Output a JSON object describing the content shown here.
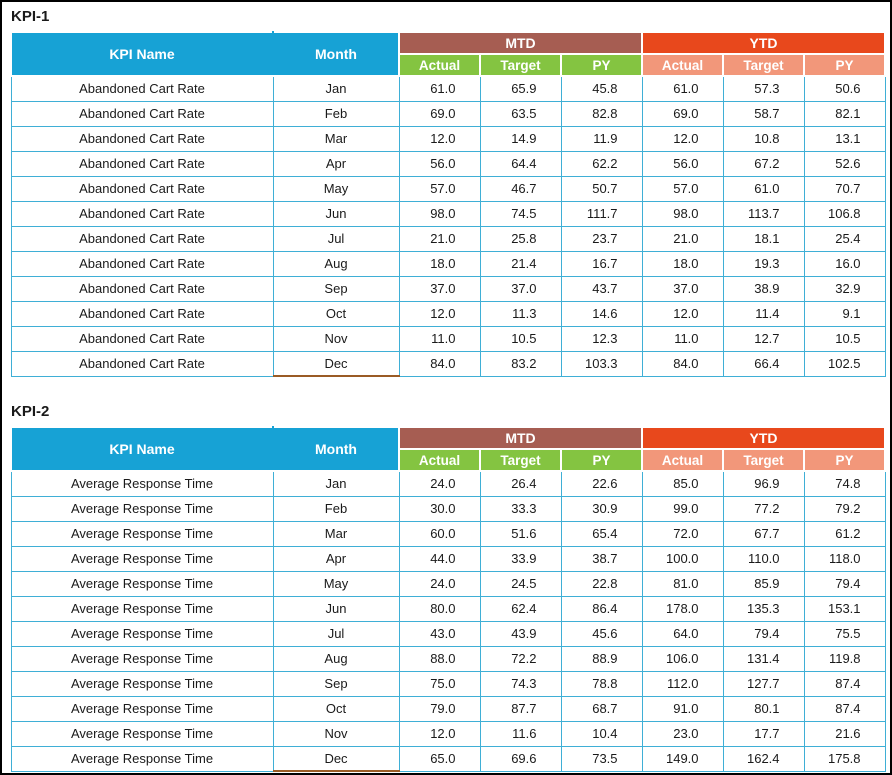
{
  "colors": {
    "page-border": "#000000",
    "text": "#1A1A1A",
    "header-cyan": "#17A2D5",
    "group-mtd": "#A65D52",
    "group-ytd": "#E8481C",
    "sub-mtd": "#84C441",
    "sub-ytd": "#F2977A",
    "cell-border": "#3FAFD6",
    "dec-underline": "#9A5B25"
  },
  "chart_data": [
    {
      "type": "table",
      "title": "KPI-1",
      "headers": {
        "kpi_name": "KPI Name",
        "month": "Month",
        "groups": [
          "MTD",
          "YTD"
        ],
        "sub": [
          "Actual",
          "Target",
          "PY",
          "Actual",
          "Target",
          "PY"
        ]
      },
      "rows": [
        {
          "kpi": "Abandoned Cart Rate",
          "month": "Jan",
          "values": [
            "61.0",
            "65.9",
            "45.8",
            "61.0",
            "57.3",
            "50.6"
          ]
        },
        {
          "kpi": "Abandoned Cart Rate",
          "month": "Feb",
          "values": [
            "69.0",
            "63.5",
            "82.8",
            "69.0",
            "58.7",
            "82.1"
          ]
        },
        {
          "kpi": "Abandoned Cart Rate",
          "month": "Mar",
          "values": [
            "12.0",
            "14.9",
            "11.9",
            "12.0",
            "10.8",
            "13.1"
          ]
        },
        {
          "kpi": "Abandoned Cart Rate",
          "month": "Apr",
          "values": [
            "56.0",
            "64.4",
            "62.2",
            "56.0",
            "67.2",
            "52.6"
          ]
        },
        {
          "kpi": "Abandoned Cart Rate",
          "month": "May",
          "values": [
            "57.0",
            "46.7",
            "50.7",
            "57.0",
            "61.0",
            "70.7"
          ]
        },
        {
          "kpi": "Abandoned Cart Rate",
          "month": "Jun",
          "values": [
            "98.0",
            "74.5",
            "111.7",
            "98.0",
            "113.7",
            "106.8"
          ]
        },
        {
          "kpi": "Abandoned Cart Rate",
          "month": "Jul",
          "values": [
            "21.0",
            "25.8",
            "23.7",
            "21.0",
            "18.1",
            "25.4"
          ]
        },
        {
          "kpi": "Abandoned Cart Rate",
          "month": "Aug",
          "values": [
            "18.0",
            "21.4",
            "16.7",
            "18.0",
            "19.3",
            "16.0"
          ]
        },
        {
          "kpi": "Abandoned Cart Rate",
          "month": "Sep",
          "values": [
            "37.0",
            "37.0",
            "43.7",
            "37.0",
            "38.9",
            "32.9"
          ]
        },
        {
          "kpi": "Abandoned Cart Rate",
          "month": "Oct",
          "values": [
            "12.0",
            "11.3",
            "14.6",
            "12.0",
            "11.4",
            "9.1"
          ]
        },
        {
          "kpi": "Abandoned Cart Rate",
          "month": "Nov",
          "values": [
            "11.0",
            "10.5",
            "12.3",
            "11.0",
            "12.7",
            "10.5"
          ]
        },
        {
          "kpi": "Abandoned Cart Rate",
          "month": "Dec",
          "values": [
            "84.0",
            "83.2",
            "103.3",
            "84.0",
            "66.4",
            "102.5"
          ]
        }
      ]
    },
    {
      "type": "table",
      "title": "KPI-2",
      "headers": {
        "kpi_name": "KPI Name",
        "month": "Month",
        "groups": [
          "MTD",
          "YTD"
        ],
        "sub": [
          "Actual",
          "Target",
          "PY",
          "Actual",
          "Target",
          "PY"
        ]
      },
      "rows": [
        {
          "kpi": "Average Response Time",
          "month": "Jan",
          "values": [
            "24.0",
            "26.4",
            "22.6",
            "85.0",
            "96.9",
            "74.8"
          ]
        },
        {
          "kpi": "Average Response Time",
          "month": "Feb",
          "values": [
            "30.0",
            "33.3",
            "30.9",
            "99.0",
            "77.2",
            "79.2"
          ]
        },
        {
          "kpi": "Average Response Time",
          "month": "Mar",
          "values": [
            "60.0",
            "51.6",
            "65.4",
            "72.0",
            "67.7",
            "61.2"
          ]
        },
        {
          "kpi": "Average Response Time",
          "month": "Apr",
          "values": [
            "44.0",
            "33.9",
            "38.7",
            "100.0",
            "110.0",
            "118.0"
          ]
        },
        {
          "kpi": "Average Response Time",
          "month": "May",
          "values": [
            "24.0",
            "24.5",
            "22.8",
            "81.0",
            "85.9",
            "79.4"
          ]
        },
        {
          "kpi": "Average Response Time",
          "month": "Jun",
          "values": [
            "80.0",
            "62.4",
            "86.4",
            "178.0",
            "135.3",
            "153.1"
          ]
        },
        {
          "kpi": "Average Response Time",
          "month": "Jul",
          "values": [
            "43.0",
            "43.9",
            "45.6",
            "64.0",
            "79.4",
            "75.5"
          ]
        },
        {
          "kpi": "Average Response Time",
          "month": "Aug",
          "values": [
            "88.0",
            "72.2",
            "88.9",
            "106.0",
            "131.4",
            "119.8"
          ]
        },
        {
          "kpi": "Average Response Time",
          "month": "Sep",
          "values": [
            "75.0",
            "74.3",
            "78.8",
            "112.0",
            "127.7",
            "87.4"
          ]
        },
        {
          "kpi": "Average Response Time",
          "month": "Oct",
          "values": [
            "79.0",
            "87.7",
            "68.7",
            "91.0",
            "80.1",
            "87.4"
          ]
        },
        {
          "kpi": "Average Response Time",
          "month": "Nov",
          "values": [
            "12.0",
            "11.6",
            "10.4",
            "23.0",
            "17.7",
            "21.6"
          ]
        },
        {
          "kpi": "Average Response Time",
          "month": "Dec",
          "values": [
            "65.0",
            "69.6",
            "73.5",
            "149.0",
            "162.4",
            "175.8"
          ]
        }
      ]
    }
  ]
}
